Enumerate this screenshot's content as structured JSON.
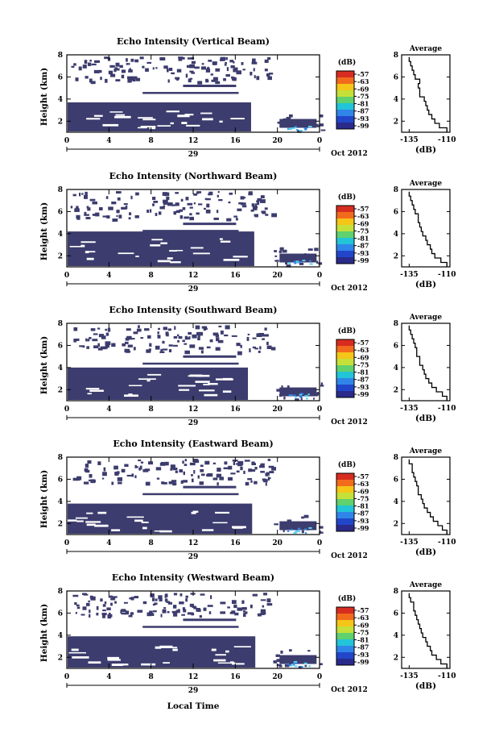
{
  "figure": {
    "xlabel": "Local Time",
    "avg_xlabel": "(dB)",
    "date_label": "Oct 2012",
    "day_label": "29",
    "colorbar_label": "(dB)",
    "colorbar_ticks": [
      "-57",
      "-63",
      "-69",
      "-75",
      "-81",
      "-87",
      "-93",
      "-99"
    ],
    "colorbar_colors": [
      "#d62d20",
      "#f26b1d",
      "#f5c518",
      "#c6e03a",
      "#5fd16d",
      "#22c4d8",
      "#2f86e8",
      "#2146c9",
      "#2a2a8a"
    ],
    "fill_color": "#3c3c6e",
    "accent_color": "#5ad0f0"
  },
  "chart_data": [
    {
      "type": "heatmap",
      "title": "Echo Intensity (Vertical Beam)",
      "ylabel": "Height (km)",
      "xlabel": "",
      "x_ticks": [
        "0",
        "4",
        "8",
        "12",
        "16",
        "20",
        "0"
      ],
      "xlim": [
        0,
        24
      ],
      "y_ticks": [
        "2",
        "4",
        "6",
        "8"
      ],
      "ylim": [
        1,
        8
      ],
      "echo_top_km": 3.7,
      "echo_end_hour": 17.5,
      "layer_km": 5.3,
      "avg_panel": {
        "title": "Average",
        "xlabel": "(dB)",
        "x_ticks": [
          "-135",
          "-110"
        ],
        "y_ticks": [
          "2",
          "4",
          "6",
          "8"
        ],
        "profile": {
          "height_km": [
            1.0,
            1.4,
            1.8,
            2.2,
            2.6,
            3.0,
            3.4,
            3.8,
            4.2,
            4.6,
            5.0,
            5.4,
            5.8,
            6.2,
            6.6,
            7.0,
            7.4,
            7.8
          ],
          "db": [
            -110,
            -115,
            -118,
            -120,
            -122,
            -123,
            -124,
            -125,
            -128,
            -128,
            -129,
            -128,
            -131,
            -132,
            -133,
            -134,
            -135,
            -135
          ]
        }
      }
    },
    {
      "type": "heatmap",
      "title": "Echo Intensity (Northward Beam)",
      "ylabel": "Height (km)",
      "xlabel": "",
      "x_ticks": [
        "0",
        "4",
        "8",
        "12",
        "16",
        "20",
        "0"
      ],
      "xlim": [
        0,
        24
      ],
      "y_ticks": [
        "2",
        "4",
        "6",
        "8"
      ],
      "ylim": [
        1,
        8
      ],
      "echo_top_km": 4.2,
      "echo_end_hour": 17.8,
      "layer_km": 5.0,
      "avg_panel": {
        "title": "Average",
        "xlabel": "(dB)",
        "x_ticks": [
          "-135",
          "-110"
        ],
        "y_ticks": [
          "2",
          "4",
          "6",
          "8"
        ],
        "profile": {
          "height_km": [
            1.0,
            1.4,
            1.8,
            2.2,
            2.6,
            3.0,
            3.4,
            3.8,
            4.2,
            4.6,
            5.0,
            5.4,
            5.8,
            6.2,
            6.6,
            7.0,
            7.4,
            7.8
          ],
          "db": [
            -110,
            -114,
            -118,
            -120,
            -121,
            -123,
            -124,
            -126,
            -127,
            -128,
            -129,
            -129,
            -131,
            -132,
            -133,
            -134,
            -135,
            -135
          ]
        }
      }
    },
    {
      "type": "heatmap",
      "title": "Echo Intensity (Southward Beam)",
      "ylabel": "Height (km)",
      "xlabel": "",
      "x_ticks": [
        "0",
        "4",
        "8",
        "12",
        "16",
        "20",
        "0"
      ],
      "xlim": [
        0,
        24
      ],
      "y_ticks": [
        "2",
        "4",
        "6",
        "8"
      ],
      "ylim": [
        1,
        8
      ],
      "echo_top_km": 4.0,
      "echo_end_hour": 17.2,
      "layer_km": 5.1,
      "avg_panel": {
        "title": "Average",
        "xlabel": "(dB)",
        "x_ticks": [
          "-135",
          "-110"
        ],
        "y_ticks": [
          "2",
          "4",
          "6",
          "8"
        ],
        "profile": {
          "height_km": [
            1.0,
            1.4,
            1.8,
            2.2,
            2.6,
            3.0,
            3.4,
            3.8,
            4.2,
            4.6,
            5.0,
            5.4,
            5.8,
            6.2,
            6.6,
            7.0,
            7.4,
            7.8
          ],
          "db": [
            -110,
            -113,
            -117,
            -120,
            -122,
            -124,
            -125,
            -126,
            -128,
            -128,
            -130,
            -130,
            -131,
            -132,
            -133,
            -134,
            -135,
            -135
          ]
        }
      }
    },
    {
      "type": "heatmap",
      "title": "Echo Intensity (Eastward Beam)",
      "ylabel": "Height (km)",
      "xlabel": "",
      "x_ticks": [
        "0",
        "4",
        "8",
        "12",
        "16",
        "20",
        "0"
      ],
      "xlim": [
        0,
        24
      ],
      "y_ticks": [
        "2",
        "4",
        "6",
        "8"
      ],
      "ylim": [
        1,
        8
      ],
      "echo_top_km": 3.8,
      "echo_end_hour": 17.6,
      "layer_km": 5.4,
      "avg_panel": {
        "title": "Average",
        "xlabel": "(dB)",
        "x_ticks": [
          "-135",
          "-110"
        ],
        "y_ticks": [
          "2",
          "4",
          "6",
          "8"
        ],
        "profile": {
          "height_km": [
            1.0,
            1.4,
            1.8,
            2.2,
            2.6,
            3.0,
            3.4,
            3.8,
            4.2,
            4.6,
            5.0,
            5.4,
            5.8,
            6.2,
            6.6,
            7.0,
            7.4,
            7.8
          ],
          "db": [
            -110,
            -113,
            -116,
            -119,
            -121,
            -123,
            -125,
            -126,
            -127,
            -129,
            -129,
            -130,
            -131,
            -132,
            -133,
            -133,
            -135,
            -135
          ]
        }
      }
    },
    {
      "type": "heatmap",
      "title": "Echo Intensity (Westward Beam)",
      "ylabel": "Height (km)",
      "xlabel": "Local Time",
      "x_ticks": [
        "0",
        "4",
        "8",
        "12",
        "16",
        "20",
        "0"
      ],
      "xlim": [
        0,
        24
      ],
      "y_ticks": [
        "2",
        "4",
        "6",
        "8"
      ],
      "ylim": [
        1,
        8
      ],
      "echo_top_km": 3.9,
      "echo_end_hour": 17.9,
      "layer_km": 5.5,
      "avg_panel": {
        "title": "Average",
        "xlabel": "(dB)",
        "x_ticks": [
          "-135",
          "-110"
        ],
        "y_ticks": [
          "2",
          "4",
          "6",
          "8"
        ],
        "profile": {
          "height_km": [
            1.0,
            1.4,
            1.8,
            2.2,
            2.6,
            3.0,
            3.4,
            3.8,
            4.2,
            4.6,
            5.0,
            5.4,
            5.8,
            6.2,
            6.6,
            7.0,
            7.4,
            7.8
          ],
          "db": [
            -110,
            -114,
            -117,
            -120,
            -121,
            -123,
            -124,
            -126,
            -127,
            -128,
            -129,
            -130,
            -131,
            -132,
            -132,
            -134,
            -135,
            -135
          ]
        }
      }
    }
  ]
}
